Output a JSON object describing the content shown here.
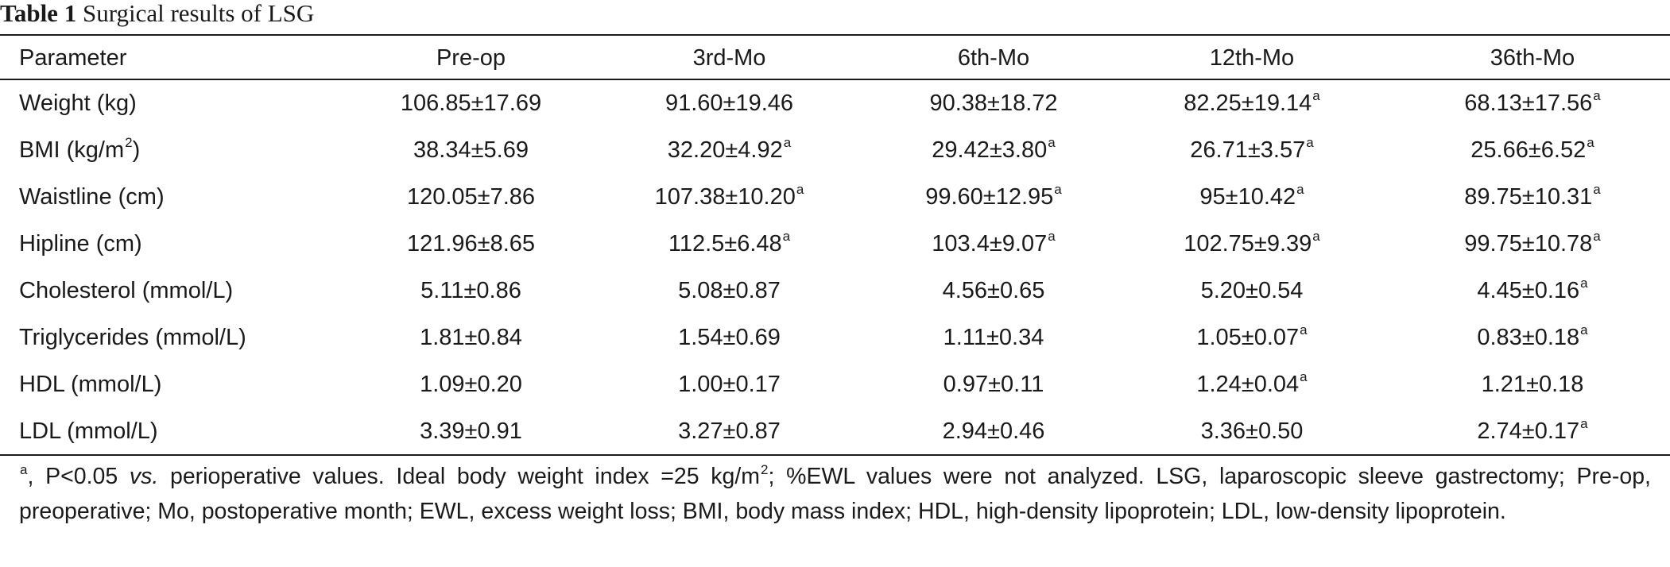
{
  "caption": {
    "label": "Table 1",
    "title": "Surgical results of LSG"
  },
  "table": {
    "headers": [
      "Parameter",
      "Pre-op",
      "3rd-Mo",
      "6th-Mo",
      "12th-Mo",
      "36th-Mo"
    ],
    "rows": [
      {
        "param": "Weight (kg)",
        "param_sup": "",
        "cells": [
          {
            "v": "106.85±17.69",
            "s": ""
          },
          {
            "v": "91.60±19.46",
            "s": ""
          },
          {
            "v": "90.38±18.72",
            "s": ""
          },
          {
            "v": "82.25±19.14",
            "s": "a"
          },
          {
            "v": "68.13±17.56",
            "s": "a"
          }
        ]
      },
      {
        "param": "BMI (kg/m",
        "param_sup": "2",
        "param_after": ")",
        "cells": [
          {
            "v": "38.34±5.69",
            "s": ""
          },
          {
            "v": "32.20±4.92",
            "s": "a"
          },
          {
            "v": "29.42±3.80",
            "s": "a"
          },
          {
            "v": "26.71±3.57",
            "s": "a"
          },
          {
            "v": "25.66±6.52",
            "s": "a"
          }
        ]
      },
      {
        "param": "Waistline (cm)",
        "param_sup": "",
        "cells": [
          {
            "v": "120.05±7.86",
            "s": ""
          },
          {
            "v": "107.38±10.20",
            "s": "a"
          },
          {
            "v": "99.60±12.95",
            "s": "a"
          },
          {
            "v": "95±10.42",
            "s": "a"
          },
          {
            "v": "89.75±10.31",
            "s": "a"
          }
        ]
      },
      {
        "param": "Hipline (cm)",
        "param_sup": "",
        "cells": [
          {
            "v": "121.96±8.65",
            "s": ""
          },
          {
            "v": "112.5±6.48",
            "s": "a"
          },
          {
            "v": "103.4±9.07",
            "s": "a"
          },
          {
            "v": "102.75±9.39",
            "s": "a"
          },
          {
            "v": "99.75±10.78",
            "s": "a"
          }
        ]
      },
      {
        "param": "Cholesterol (mmol/L)",
        "param_sup": "",
        "cells": [
          {
            "v": "5.11±0.86",
            "s": ""
          },
          {
            "v": "5.08±0.87",
            "s": ""
          },
          {
            "v": "4.56±0.65",
            "s": ""
          },
          {
            "v": "5.20±0.54",
            "s": ""
          },
          {
            "v": "4.45±0.16",
            "s": "a"
          }
        ]
      },
      {
        "param": "Triglycerides (mmol/L)",
        "param_sup": "",
        "cells": [
          {
            "v": "1.81±0.84",
            "s": ""
          },
          {
            "v": "1.54±0.69",
            "s": ""
          },
          {
            "v": "1.11±0.34",
            "s": ""
          },
          {
            "v": "1.05±0.07",
            "s": "a"
          },
          {
            "v": "0.83±0.18",
            "s": "a"
          }
        ]
      },
      {
        "param": "HDL (mmol/L)",
        "param_sup": "",
        "cells": [
          {
            "v": "1.09±0.20",
            "s": ""
          },
          {
            "v": "1.00±0.17",
            "s": ""
          },
          {
            "v": "0.97±0.11",
            "s": ""
          },
          {
            "v": "1.24±0.04",
            "s": "a"
          },
          {
            "v": "1.21±0.18",
            "s": ""
          }
        ]
      },
      {
        "param": "LDL (mmol/L)",
        "param_sup": "",
        "cells": [
          {
            "v": "3.39±0.91",
            "s": ""
          },
          {
            "v": "3.27±0.87",
            "s": ""
          },
          {
            "v": "2.94±0.46",
            "s": ""
          },
          {
            "v": "3.36±0.50",
            "s": ""
          },
          {
            "v": "2.74±0.17",
            "s": "a"
          }
        ]
      }
    ]
  },
  "footnote": {
    "marker": "a",
    "text1": ", P<0.05 ",
    "vs": "vs.",
    "text2": " perioperative values. Ideal body weight index =25 kg/m",
    "sup2": "2",
    "text3": "; %EWL values were not analyzed. LSG, laparoscopic sleeve gastrectomy; Pre-op, preoperative; Mo, postoperative month; EWL, excess weight loss; BMI, body mass index; HDL, high-density lipoprotein; LDL, low-density lipoprotein."
  }
}
